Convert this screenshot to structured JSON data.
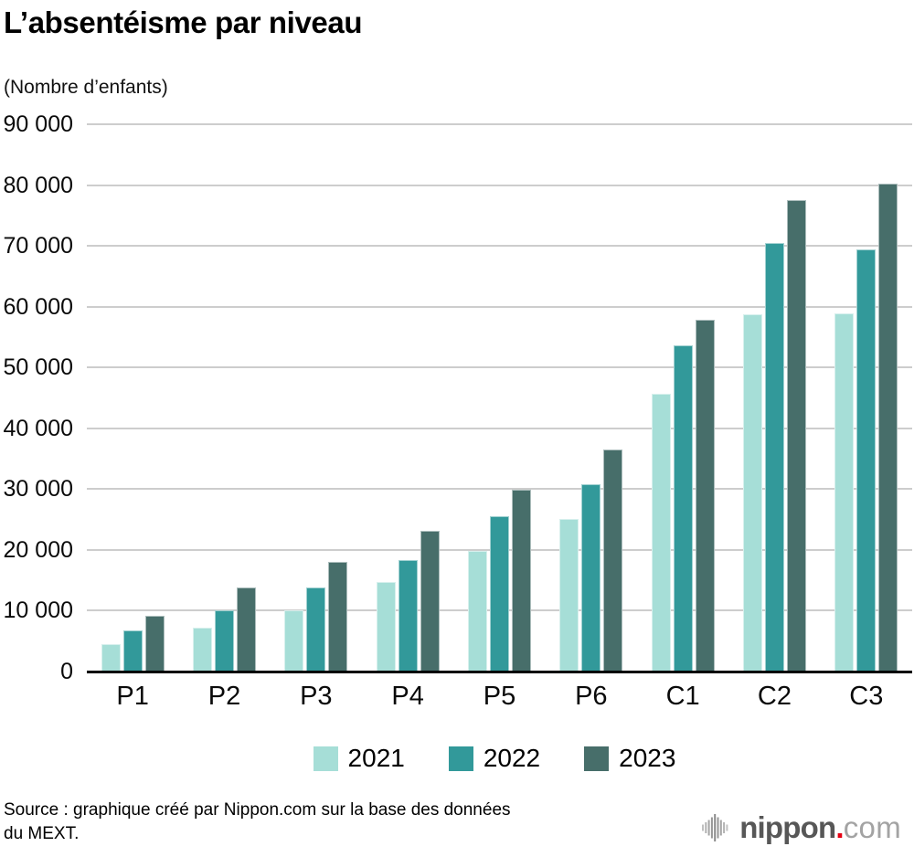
{
  "chart_data": {
    "type": "bar",
    "title": "L’absentéisme par niveau",
    "unit_label": "(Nombre d’enfants)",
    "categories": [
      "P1",
      "P2",
      "P3",
      "P4",
      "P5",
      "P6",
      "C1",
      "C2",
      "C3"
    ],
    "series": [
      {
        "name": "2021",
        "color": "#a6ded7",
        "values": [
          4500,
          7200,
          10100,
          14700,
          19800,
          25100,
          45700,
          58800,
          58900
        ]
      },
      {
        "name": "2022",
        "color": "#32999a",
        "values": [
          6700,
          10000,
          13800,
          18400,
          25500,
          30800,
          53700,
          70500,
          69400
        ]
      },
      {
        "name": "2023",
        "color": "#476e6a",
        "values": [
          9200,
          13800,
          18000,
          23100,
          29900,
          36500,
          57900,
          77500,
          80200
        ]
      }
    ],
    "ylim": [
      0,
      90000
    ],
    "ytick_step": 10000,
    "ytick_labels": [
      "0",
      "10 000",
      "20 000",
      "30 000",
      "40 000",
      "50 000",
      "60 000",
      "70 000",
      "80 000",
      "90 000"
    ],
    "grid": true,
    "legend_position": "bottom",
    "grid_color": "#cdcdcd",
    "axis_color": "#000000"
  },
  "source": {
    "line1": "Source : graphique créé par Nippon.com sur la base des données",
    "line2": "du MEXT."
  },
  "logo": {
    "wordmark": "nippon",
    "dot": ".",
    "suffix": "com",
    "red": "#e60012",
    "dark": "#575757",
    "light": "#a3a3a3"
  }
}
